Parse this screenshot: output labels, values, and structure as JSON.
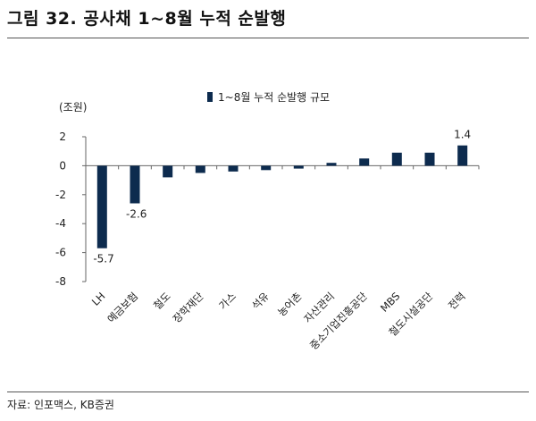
{
  "header": {
    "title": "그림 32. 공사채 1~8월 누적 순발행"
  },
  "footer": {
    "source": "자료: 인포맥스, KB증권"
  },
  "chart_data": {
    "type": "bar",
    "unit_label": "(조원)",
    "categories": [
      "LH",
      "예금보험",
      "철도",
      "장학재단",
      "가스",
      "석유",
      "농어촌",
      "자산관리",
      "중소기업진흥공단",
      "MBS",
      "철도시설공단",
      "전력"
    ],
    "series": [
      {
        "name": "1~8월 누적 순발행 규모",
        "values": [
          -5.7,
          -2.6,
          -0.8,
          -0.5,
          -0.4,
          -0.3,
          -0.2,
          0.2,
          0.5,
          0.9,
          0.9,
          1.4
        ]
      }
    ],
    "data_labels": [
      {
        "index": 0,
        "text": "-5.7"
      },
      {
        "index": 1,
        "text": "-2.6"
      },
      {
        "index": 11,
        "text": "1.4"
      }
    ],
    "ylim": [
      -8,
      2
    ],
    "yticks": [
      2,
      0,
      -2,
      -4,
      -6,
      -8
    ],
    "grid": false,
    "legend": "top",
    "color": "#0d2b4e"
  }
}
